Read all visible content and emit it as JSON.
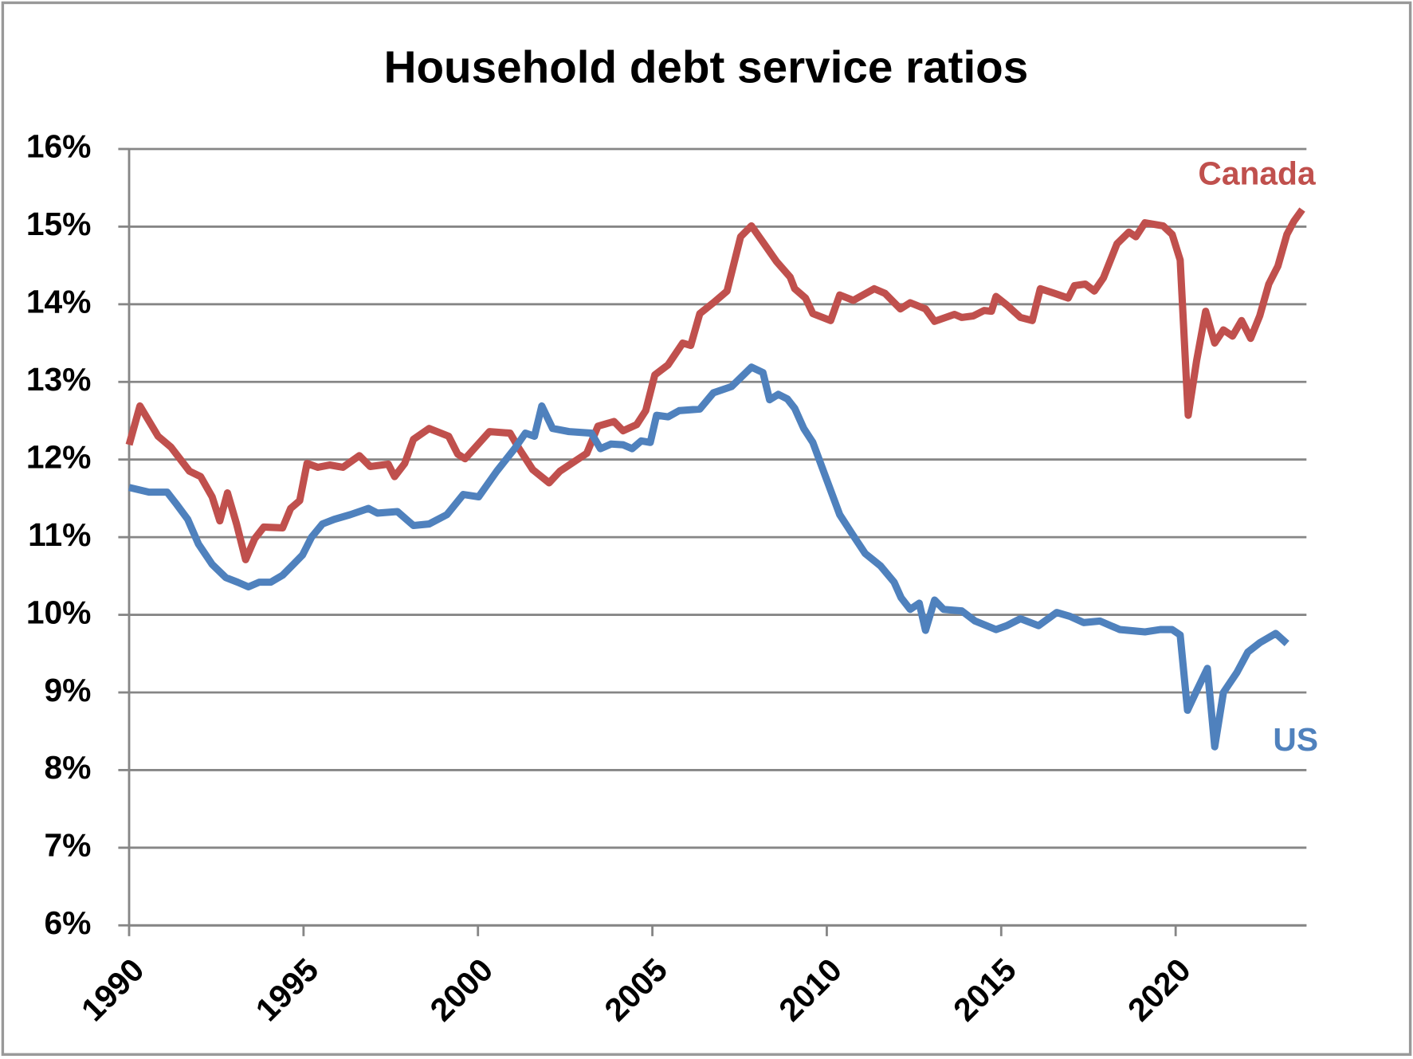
{
  "chart_data": {
    "type": "line",
    "title": "Household debt service ratios",
    "xlim": [
      1990,
      2023.75
    ],
    "xticks": [
      1990,
      1995,
      2000,
      2005,
      2010,
      2015,
      2020
    ],
    "ylim": [
      6,
      16
    ],
    "yticks": [
      {
        "value": 6,
        "label": "6%"
      },
      {
        "value": 7,
        "label": "7%"
      },
      {
        "value": 8,
        "label": "8%"
      },
      {
        "value": 9,
        "label": "9%"
      },
      {
        "value": 10,
        "label": "10%"
      },
      {
        "value": 11,
        "label": "11%"
      },
      {
        "value": 12,
        "label": "12%"
      },
      {
        "value": 13,
        "label": "13%"
      },
      {
        "value": 14,
        "label": "14%"
      },
      {
        "value": 15,
        "label": "15%"
      },
      {
        "value": 16,
        "label": "16%"
      }
    ],
    "grid": true,
    "series": [
      {
        "name": "Canada",
        "color": "#c0504d",
        "x": [
          1990.0,
          1990.31,
          1990.83,
          1991.2,
          1991.73,
          1992.05,
          1992.38,
          1992.6,
          1992.82,
          1993.08,
          1993.34,
          1993.6,
          1993.86,
          1994.4,
          1994.63,
          1994.89,
          1995.1,
          1995.41,
          1995.75,
          1996.13,
          1996.6,
          1996.91,
          1997.43,
          1997.61,
          1997.9,
          1998.15,
          1998.6,
          1999.16,
          1999.42,
          1999.63,
          2000.33,
          2000.92,
          2001.18,
          2001.57,
          2002.04,
          2002.35,
          2003.12,
          2003.44,
          2003.9,
          2004.16,
          2004.55,
          2004.81,
          2005.07,
          2005.45,
          2005.87,
          2006.1,
          2006.36,
          2006.75,
          2007.14,
          2007.53,
          2007.84,
          2008.17,
          2008.56,
          2008.95,
          2009.08,
          2009.39,
          2009.6,
          2010.11,
          2010.37,
          2010.76,
          2011.36,
          2011.67,
          2012.11,
          2012.39,
          2012.83,
          2013.09,
          2013.66,
          2013.87,
          2014.2,
          2014.51,
          2014.72,
          2014.85,
          2015.16,
          2015.55,
          2015.89,
          2016.12,
          2016.53,
          2016.92,
          2017.1,
          2017.41,
          2017.67,
          2017.93,
          2018.32,
          2018.66,
          2018.86,
          2019.12,
          2019.64,
          2019.9,
          2020.13,
          2020.36,
          2020.6,
          2020.86,
          2021.12,
          2021.37,
          2021.63,
          2021.89,
          2022.15,
          2022.41,
          2022.67,
          2022.93,
          2023.19,
          2023.39,
          2023.63
        ],
        "values": [
          12.19,
          12.69,
          12.3,
          12.16,
          11.85,
          11.78,
          11.52,
          11.21,
          11.57,
          11.17,
          10.71,
          10.98,
          11.13,
          11.12,
          11.37,
          11.47,
          11.95,
          11.9,
          11.93,
          11.9,
          12.05,
          11.91,
          11.94,
          11.78,
          11.95,
          12.26,
          12.4,
          12.3,
          12.07,
          12.01,
          12.36,
          12.34,
          12.14,
          11.87,
          11.7,
          11.85,
          12.08,
          12.43,
          12.49,
          12.37,
          12.45,
          12.63,
          13.09,
          13.22,
          13.5,
          13.47,
          13.88,
          14.02,
          14.17,
          14.87,
          15.01,
          14.8,
          14.55,
          14.35,
          14.2,
          14.08,
          13.88,
          13.79,
          14.12,
          14.05,
          14.2,
          14.14,
          13.94,
          14.02,
          13.94,
          13.78,
          13.87,
          13.83,
          13.85,
          13.92,
          13.91,
          14.1,
          13.99,
          13.83,
          13.79,
          14.2,
          14.14,
          14.08,
          14.24,
          14.26,
          14.17,
          14.34,
          14.78,
          14.93,
          14.87,
          15.05,
          15.01,
          14.9,
          14.57,
          12.57,
          13.27,
          13.91,
          13.5,
          13.67,
          13.59,
          13.79,
          13.56,
          13.85,
          14.26,
          14.49,
          14.9,
          15.07,
          15.22
        ]
      },
      {
        "name": "US",
        "color": "#4f81bd",
        "x": [
          1990.0,
          1990.57,
          1991.09,
          1991.35,
          1991.68,
          1991.99,
          1992.38,
          1992.77,
          1993.11,
          1993.42,
          1993.73,
          1994.06,
          1994.4,
          1994.71,
          1994.97,
          1995.23,
          1995.54,
          1995.88,
          1996.34,
          1996.86,
          1997.12,
          1997.69,
          1998.15,
          1998.6,
          1999.11,
          1999.58,
          2000.02,
          2000.54,
          2001.05,
          2001.36,
          2001.62,
          2001.83,
          2002.14,
          2002.61,
          2003.25,
          2003.51,
          2003.82,
          2004.16,
          2004.42,
          2004.68,
          2004.94,
          2005.12,
          2005.45,
          2005.77,
          2006.36,
          2006.75,
          2007.27,
          2007.84,
          2008.17,
          2008.36,
          2008.61,
          2008.87,
          2009.08,
          2009.34,
          2009.6,
          2009.98,
          2010.37,
          2010.76,
          2011.1,
          2011.54,
          2011.93,
          2012.13,
          2012.39,
          2012.65,
          2012.83,
          2013.09,
          2013.35,
          2013.87,
          2014.25,
          2014.85,
          2015.16,
          2015.55,
          2016.07,
          2016.59,
          2016.97,
          2017.36,
          2017.83,
          2018.4,
          2019.12,
          2019.56,
          2019.9,
          2020.13,
          2020.34,
          2020.6,
          2020.91,
          2021.12,
          2021.37,
          2021.76,
          2022.07,
          2022.41,
          2022.87,
          2023.19
        ],
        "values": [
          11.64,
          11.58,
          11.58,
          11.43,
          11.23,
          10.91,
          10.65,
          10.48,
          10.42,
          10.36,
          10.42,
          10.42,
          10.51,
          10.65,
          10.77,
          11.0,
          11.17,
          11.23,
          11.29,
          11.37,
          11.31,
          11.33,
          11.15,
          11.17,
          11.29,
          11.55,
          11.52,
          11.85,
          12.14,
          12.34,
          12.3,
          12.69,
          12.4,
          12.36,
          12.34,
          12.14,
          12.2,
          12.19,
          12.14,
          12.24,
          12.22,
          12.57,
          12.55,
          12.63,
          12.65,
          12.86,
          12.94,
          13.19,
          13.12,
          12.77,
          12.84,
          12.78,
          12.66,
          12.4,
          12.22,
          11.76,
          11.29,
          11.02,
          10.79,
          10.63,
          10.42,
          10.22,
          10.07,
          10.15,
          9.8,
          10.19,
          10.07,
          10.05,
          9.92,
          9.81,
          9.86,
          9.95,
          9.86,
          10.03,
          9.98,
          9.9,
          9.92,
          9.81,
          9.78,
          9.81,
          9.81,
          9.74,
          8.77,
          9.02,
          9.31,
          8.3,
          9.0,
          9.26,
          9.52,
          9.64,
          9.76,
          9.63
        ]
      }
    ]
  }
}
